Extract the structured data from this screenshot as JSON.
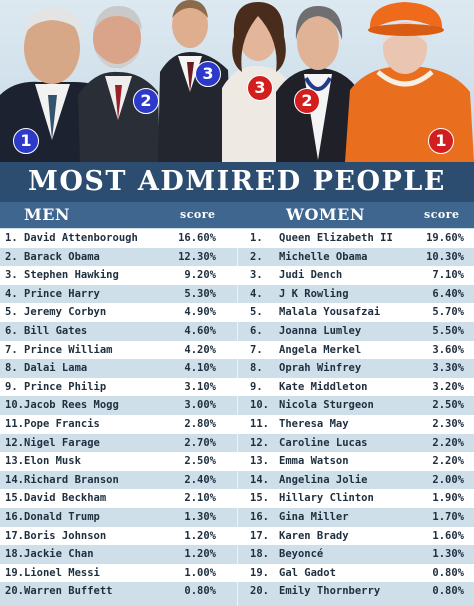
{
  "title": "MOST ADMIRED PEOPLE",
  "headers": {
    "men": "MEN",
    "women": "WOMEN",
    "score_left": "score",
    "score_right": "score"
  },
  "photo_badges": [
    {
      "label": "1",
      "color": "blue"
    },
    {
      "label": "2",
      "color": "blue"
    },
    {
      "label": "3",
      "color": "blue"
    },
    {
      "label": "3",
      "color": "red"
    },
    {
      "label": "2",
      "color": "red"
    },
    {
      "label": "1",
      "color": "red"
    }
  ],
  "colors": {
    "title_bg": "#2c4d6f",
    "header_bg": "#3f668f",
    "row_white": "#ffffff",
    "row_blue": "#cfdfea",
    "text": "#1f2f3e",
    "badge_blue": "#2c39c9",
    "badge_red": "#d21e1e"
  },
  "chart_data": {
    "type": "table",
    "title": "MOST ADMIRED PEOPLE",
    "columns": [
      "MEN",
      "score",
      "WOMEN",
      "score"
    ],
    "men": [
      {
        "rank": "1.",
        "name": "David Attenborough",
        "score": "16.60%"
      },
      {
        "rank": "2.",
        "name": "Barack Obama",
        "score": "12.30%"
      },
      {
        "rank": "3.",
        "name": "Stephen Hawking",
        "score": "9.20%"
      },
      {
        "rank": "4.",
        "name": "Prince Harry",
        "score": "5.30%"
      },
      {
        "rank": "5.",
        "name": "Jeremy Corbyn",
        "score": "4.90%"
      },
      {
        "rank": "6.",
        "name": "Bill Gates",
        "score": "4.60%"
      },
      {
        "rank": "7.",
        "name": "Prince William",
        "score": "4.20%"
      },
      {
        "rank": "8.",
        "name": "Dalai Lama",
        "score": "4.10%"
      },
      {
        "rank": "9.",
        "name": "Prince Philip",
        "score": "3.10%"
      },
      {
        "rank": "10.",
        "name": "Jacob Rees Mogg",
        "score": "3.00%"
      },
      {
        "rank": "11.",
        "name": "Pope Francis",
        "score": "2.80%"
      },
      {
        "rank": "12.",
        "name": "Nigel Farage",
        "score": "2.70%"
      },
      {
        "rank": "13.",
        "name": "Elon Musk",
        "score": "2.50%"
      },
      {
        "rank": "14.",
        "name": "Richard Branson",
        "score": "2.40%"
      },
      {
        "rank": "15.",
        "name": "David Beckham",
        "score": "2.10%"
      },
      {
        "rank": "16.",
        "name": "Donald Trump",
        "score": "1.30%"
      },
      {
        "rank": "17.",
        "name": "Boris Johnson",
        "score": "1.20%"
      },
      {
        "rank": "18.",
        "name": "Jackie Chan",
        "score": "1.20%"
      },
      {
        "rank": "19.",
        "name": "Lionel Messi",
        "score": "1.00%"
      },
      {
        "rank": "20.",
        "name": "Warren Buffett",
        "score": "0.80%"
      }
    ],
    "women": [
      {
        "rank": "1.",
        "name": "Queen Elizabeth II",
        "score": "19.60%"
      },
      {
        "rank": "2.",
        "name": "Michelle Obama",
        "score": "10.30%"
      },
      {
        "rank": "3.",
        "name": "Judi Dench",
        "score": "7.10%"
      },
      {
        "rank": "4.",
        "name": "J K Rowling",
        "score": "6.40%"
      },
      {
        "rank": "5.",
        "name": "Malala Yousafzai",
        "score": "5.70%"
      },
      {
        "rank": "6.",
        "name": "Joanna Lumley",
        "score": "5.50%"
      },
      {
        "rank": "7.",
        "name": "Angela Merkel",
        "score": "3.60%"
      },
      {
        "rank": "8.",
        "name": "Oprah Winfrey",
        "score": "3.30%"
      },
      {
        "rank": "9.",
        "name": "Kate Middleton",
        "score": "3.20%"
      },
      {
        "rank": "10.",
        "name": "Nicola Sturgeon",
        "score": "2.50%"
      },
      {
        "rank": "11.",
        "name": "Theresa May",
        "score": "2.30%"
      },
      {
        "rank": "12.",
        "name": "Caroline Lucas",
        "score": "2.20%"
      },
      {
        "rank": "13.",
        "name": "Emma Watson",
        "score": "2.20%"
      },
      {
        "rank": "14.",
        "name": "Angelina Jolie",
        "score": "2.00%"
      },
      {
        "rank": "15.",
        "name": "Hillary Clinton",
        "score": "1.90%"
      },
      {
        "rank": "16.",
        "name": "Gina Miller",
        "score": "1.70%"
      },
      {
        "rank": "17.",
        "name": "Karen Brady",
        "score": "1.60%"
      },
      {
        "rank": "18.",
        "name": "Beyoncé",
        "score": "1.30%"
      },
      {
        "rank": "19.",
        "name": "Gal Gadot",
        "score": "0.80%"
      },
      {
        "rank": "20.",
        "name": "Emily Thornberry",
        "score": "0.80%"
      }
    ]
  }
}
